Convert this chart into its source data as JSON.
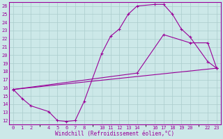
{
  "xlabel": "Windchill (Refroidissement éolien,°C)",
  "bg_color": "#cce8e8",
  "line_color": "#990099",
  "grid_color": "#aacccc",
  "xlim": [
    -0.5,
    23.5
  ],
  "ylim": [
    11.5,
    26.5
  ],
  "xticks": [
    0,
    1,
    2,
    4,
    5,
    6,
    7,
    8,
    10,
    11,
    12,
    13,
    14,
    16,
    17,
    18,
    19,
    20,
    22,
    23
  ],
  "yticks": [
    12,
    13,
    14,
    15,
    16,
    17,
    18,
    19,
    20,
    21,
    22,
    23,
    24,
    25,
    26
  ],
  "line1_x": [
    0,
    1,
    2,
    4,
    5,
    6,
    7,
    8,
    10,
    11,
    12,
    13,
    14,
    16,
    17,
    18,
    19,
    20,
    22,
    23
  ],
  "line1_y": [
    15.8,
    14.7,
    13.8,
    13.1,
    12.0,
    11.9,
    12.0,
    14.3,
    20.2,
    22.3,
    23.2,
    25.0,
    26.0,
    26.2,
    26.2,
    25.0,
    23.2,
    22.2,
    19.2,
    18.4
  ],
  "line2_x": [
    0,
    23
  ],
  "line2_y": [
    15.8,
    18.4
  ],
  "line3_x": [
    0,
    14,
    17,
    20,
    22,
    23
  ],
  "line3_y": [
    15.8,
    17.8,
    22.5,
    21.5,
    21.5,
    18.4
  ]
}
